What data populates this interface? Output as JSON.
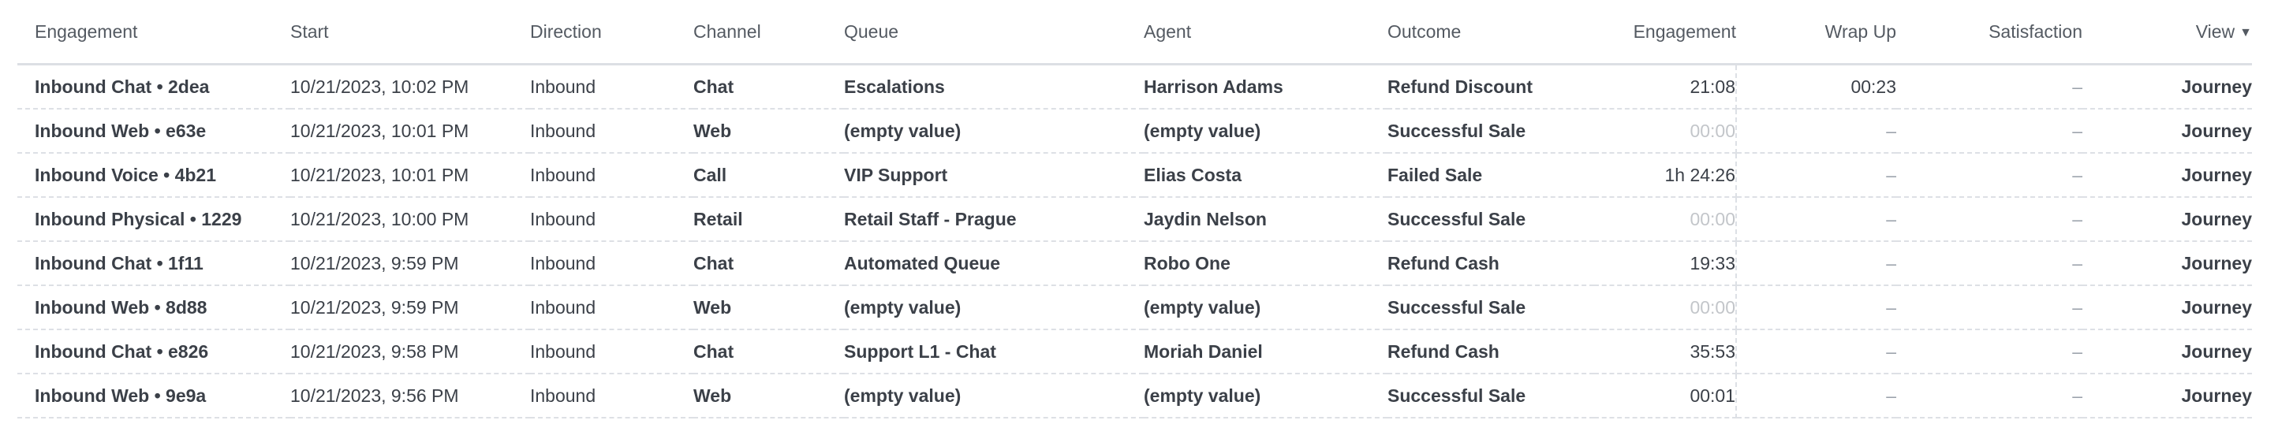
{
  "table": {
    "columns": [
      "Engagement",
      "Start",
      "Direction",
      "Channel",
      "Queue",
      "Agent",
      "Outcome",
      "Engagement",
      "Wrap Up",
      "Satisfaction",
      "View"
    ],
    "view_caret": "▼",
    "rows": [
      {
        "engagement": "Inbound Chat • 2dea",
        "start": "10/21/2023, 10:02 PM",
        "direction": "Inbound",
        "channel": "Chat",
        "queue": "Escalations",
        "agent": "Harrison Adams",
        "outcome": "Refund Discount",
        "duration": "21:08",
        "duration_muted": false,
        "wrap_up": "00:23",
        "satisfaction": "–",
        "view": "Journey"
      },
      {
        "engagement": "Inbound Web • e63e",
        "start": "10/21/2023, 10:01 PM",
        "direction": "Inbound",
        "channel": "Web",
        "queue": "(empty value)",
        "agent": "(empty value)",
        "outcome": "Successful Sale",
        "duration": "00:00",
        "duration_muted": true,
        "wrap_up": "–",
        "satisfaction": "–",
        "view": "Journey"
      },
      {
        "engagement": "Inbound Voice • 4b21",
        "start": "10/21/2023, 10:01 PM",
        "direction": "Inbound",
        "channel": "Call",
        "queue": "VIP Support",
        "agent": "Elias Costa",
        "outcome": "Failed Sale",
        "duration": "1h 24:26",
        "duration_muted": false,
        "wrap_up": "–",
        "satisfaction": "–",
        "view": "Journey"
      },
      {
        "engagement": "Inbound Physical • 1229",
        "start": "10/21/2023, 10:00 PM",
        "direction": "Inbound",
        "channel": "Retail",
        "queue": "Retail Staff - Prague",
        "agent": "Jaydin Nelson",
        "outcome": "Successful Sale",
        "duration": "00:00",
        "duration_muted": true,
        "wrap_up": "–",
        "satisfaction": "–",
        "view": "Journey"
      },
      {
        "engagement": "Inbound Chat • 1f11",
        "start": "10/21/2023, 9:59 PM",
        "direction": "Inbound",
        "channel": "Chat",
        "queue": "Automated Queue",
        "agent": "Robo One",
        "outcome": "Refund Cash",
        "duration": "19:33",
        "duration_muted": false,
        "wrap_up": "–",
        "satisfaction": "–",
        "view": "Journey"
      },
      {
        "engagement": "Inbound Web • 8d88",
        "start": "10/21/2023, 9:59 PM",
        "direction": "Inbound",
        "channel": "Web",
        "queue": "(empty value)",
        "agent": "(empty value)",
        "outcome": "Successful Sale",
        "duration": "00:00",
        "duration_muted": true,
        "wrap_up": "–",
        "satisfaction": "–",
        "view": "Journey"
      },
      {
        "engagement": "Inbound Chat • e826",
        "start": "10/21/2023, 9:58 PM",
        "direction": "Inbound",
        "channel": "Chat",
        "queue": "Support L1 - Chat",
        "agent": "Moriah Daniel",
        "outcome": "Refund Cash",
        "duration": "35:53",
        "duration_muted": false,
        "wrap_up": "–",
        "satisfaction": "–",
        "view": "Journey"
      },
      {
        "engagement": "Inbound Web • 9e9a",
        "start": "10/21/2023, 9:56 PM",
        "direction": "Inbound",
        "channel": "Web",
        "queue": "(empty value)",
        "agent": "(empty value)",
        "outcome": "Successful Sale",
        "duration": "00:01",
        "duration_muted": false,
        "wrap_up": "–",
        "satisfaction": "–",
        "view": "Journey"
      }
    ]
  }
}
